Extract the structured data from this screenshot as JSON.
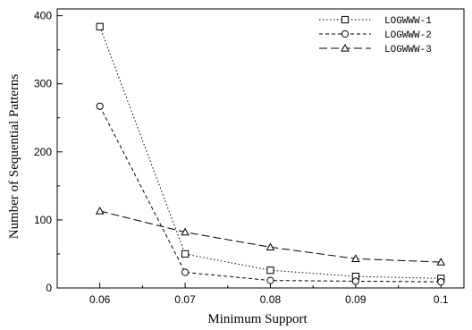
{
  "chart_data": {
    "type": "line",
    "xlabel": "Minimum Support",
    "ylabel": "Number of Sequential Patterns",
    "x": [
      0.06,
      0.07,
      0.08,
      0.09,
      0.1
    ],
    "x_tick_labels": [
      "0.06",
      "0.07",
      "0.08",
      "0.09",
      "0.1"
    ],
    "y_ticks": [
      "0",
      "100",
      "200",
      "300",
      "400"
    ],
    "xlim": [
      0.055,
      0.1027
    ],
    "ylim": [
      0,
      410
    ],
    "grid": false,
    "legend_position": "top-right",
    "series": [
      {
        "name": "LOGWWW-1",
        "marker": "square",
        "dash": "dotted",
        "values": [
          384,
          50,
          26,
          17,
          14
        ]
      },
      {
        "name": "LOGWWW-2",
        "marker": "circle",
        "dash": "short-dash",
        "values": [
          267,
          23,
          11,
          10,
          9
        ]
      },
      {
        "name": "LOGWWW-3",
        "marker": "triangle",
        "dash": "long-dash",
        "values": [
          113,
          82,
          60,
          43,
          38
        ]
      }
    ]
  }
}
